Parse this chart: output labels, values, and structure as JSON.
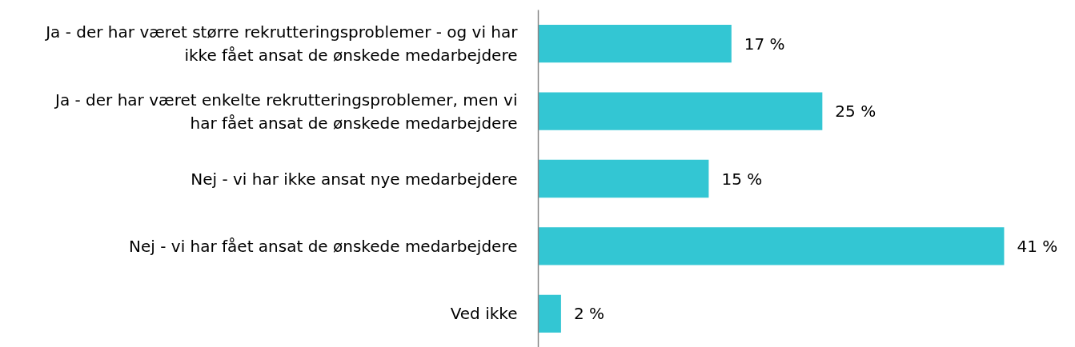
{
  "chart_data": {
    "type": "bar",
    "orientation": "horizontal",
    "categories": [
      "Ja - der har været større rekrutteringsproblemer - og vi har ikke fået ansat de ønskede medarbejdere",
      "Ja - der har været enkelte rekrutteringsproblemer, men vi har fået ansat de ønskede medarbejdere",
      "Nej - vi har ikke ansat nye medarbejdere",
      "Nej - vi har fået ansat de ønskede medarbejdere",
      "Ved ikke"
    ],
    "values": [
      17,
      25,
      15,
      41,
      2
    ],
    "value_labels": [
      "17 %",
      "25 %",
      "15 %",
      "41 %",
      "2 %"
    ],
    "color": "#33c6d3",
    "tick_labels": "y"
  }
}
